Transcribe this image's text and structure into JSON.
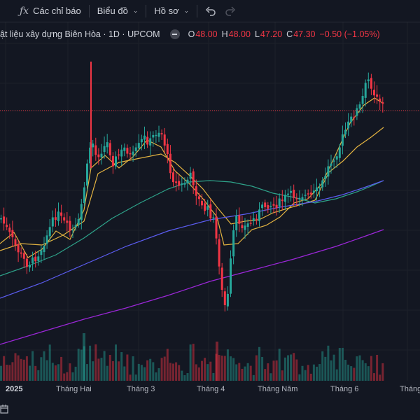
{
  "toolbar": {
    "indicators_label": "Các chỉ báo",
    "indicators_icon": "fx-icon",
    "chart_type_label": "Biểu đồ",
    "profile_label": "Hồ sơ",
    "undo_icon": "undo-icon",
    "redo_icon": "redo-icon"
  },
  "legend": {
    "title": "ật liệu xây dựng Biên Hòa · 1D · UPCOM",
    "open_label": "O",
    "open": "48.00",
    "high_label": "H",
    "high": "48.00",
    "low_label": "L",
    "low": "47.20",
    "close_label": "C",
    "close": "47.30",
    "change": "−0.50 (−1.05%)"
  },
  "date_axis": [
    "2025",
    "Tháng Hai",
    "Tháng 3",
    "Tháng 4",
    "Tháng Năm",
    "Tháng 6",
    "Tháng"
  ],
  "colors": {
    "up": "#26a69a",
    "down": "#f23645",
    "ma_yellow": "#e3b341",
    "ma_teal": "#2ea38a",
    "ma_blue": "#5b5cf0",
    "ma_purple": "#9c27d9",
    "background": "#131722"
  },
  "chart_data": {
    "type": "candlestick",
    "symbol": "ật liệu xây dựng Biên Hòa",
    "interval": "1D",
    "exchange": "UPCOM",
    "last": {
      "open": 48.0,
      "high": 48.0,
      "low": 47.2,
      "close": 47.3,
      "change": -0.5,
      "change_pct": -1.05
    },
    "x_tick_labels": [
      "2025",
      "Tháng Hai",
      "Tháng 3",
      "Tháng 4",
      "Tháng Năm",
      "Tháng 6",
      "Tháng"
    ],
    "price_line": 47.3,
    "moving_averages": 4,
    "volume_histogram": true
  }
}
